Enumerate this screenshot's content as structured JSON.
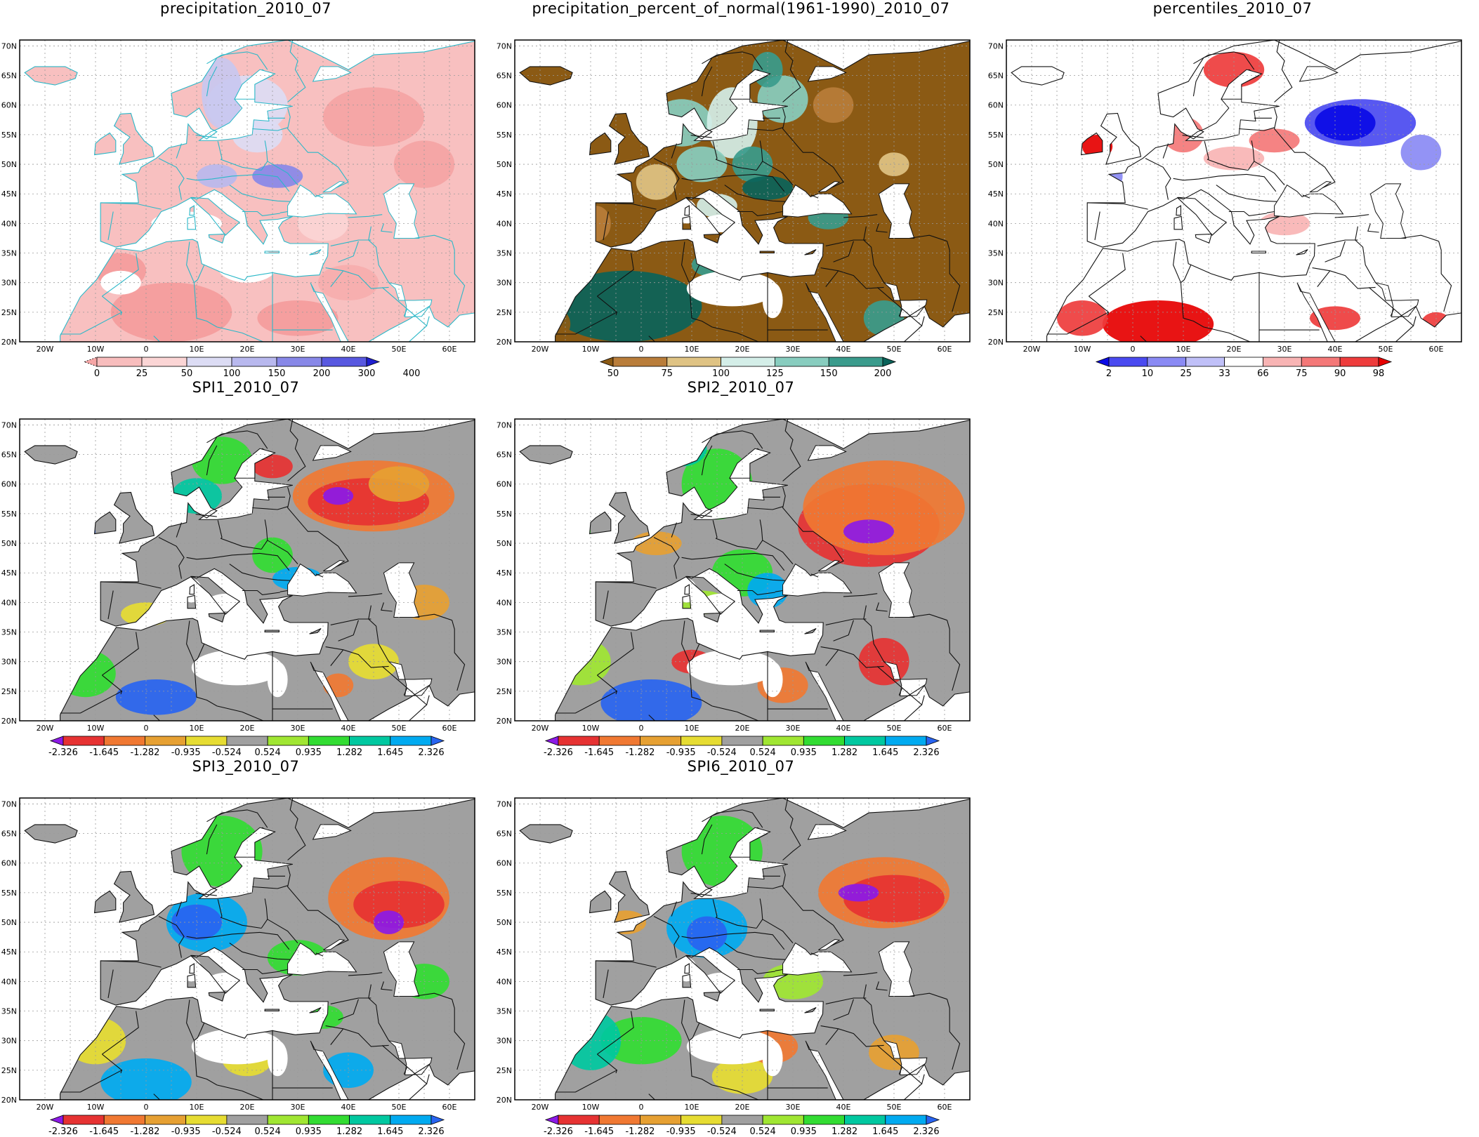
{
  "lat_labels": [
    "70N",
    "65N",
    "60N",
    "55N",
    "50N",
    "45N",
    "40N",
    "35N",
    "30N",
    "25N",
    "20N"
  ],
  "lon_labels": [
    "20W",
    "10W",
    "0",
    "10E",
    "20E",
    "30E",
    "40E",
    "50E",
    "60E"
  ],
  "panels": [
    {
      "title": "precipitation_2010_07",
      "colorbar": "precip"
    },
    {
      "title": "precipitation_percent_of_normal(1961-1990)_2010_07",
      "colorbar": "pct"
    },
    {
      "title": "percentiles_2010_07",
      "colorbar": "perc"
    },
    {
      "title": "SPI1_2010_07",
      "colorbar": "spi"
    },
    {
      "title": "SPI2_2010_07",
      "colorbar": "spi"
    },
    {
      "title": "SPI3_2010_07",
      "colorbar": "spi"
    },
    {
      "title": "SPI6_2010_07",
      "colorbar": "spi"
    }
  ],
  "colorbars": {
    "precip": {
      "labels": [
        "0",
        "25",
        "50",
        "100",
        "150",
        "200",
        "300",
        "400"
      ],
      "colors": [
        "#f6a6a6",
        "#f8bdbd",
        "#fbd5d5",
        "#dcdcf4",
        "#b8b8ee",
        "#8888e8",
        "#5858e0",
        "#2020d0"
      ]
    },
    "pct": {
      "labels": [
        "50",
        "75",
        "100",
        "125",
        "150",
        "200"
      ],
      "colors": [
        "#8b5a14",
        "#b97d3a",
        "#dfc384",
        "#d4eee8",
        "#88cdbf",
        "#3a9b8c",
        "#0a635a"
      ]
    },
    "perc": {
      "labels": [
        "2",
        "10",
        "25",
        "33",
        "66",
        "75",
        "90",
        "98"
      ],
      "colors": [
        "#0a0ae6",
        "#4a4af0",
        "#8a8af4",
        "#c0c0f8",
        "#ffffff",
        "#f8b4b4",
        "#f47878",
        "#ee3c3c",
        "#e60000"
      ]
    },
    "spi": {
      "labels": [
        "-2.326",
        "-1.645",
        "-1.282",
        "-0.935",
        "-0.524",
        "0.524",
        "0.935",
        "1.282",
        "1.645",
        "2.326"
      ],
      "colors": [
        "#8c1ae6",
        "#e63232",
        "#f07832",
        "#e6a032",
        "#e6dc32",
        "#a0a0a0",
        "#a0e632",
        "#32dc32",
        "#00c8a0",
        "#00aaf0",
        "#2864f0"
      ]
    }
  }
}
